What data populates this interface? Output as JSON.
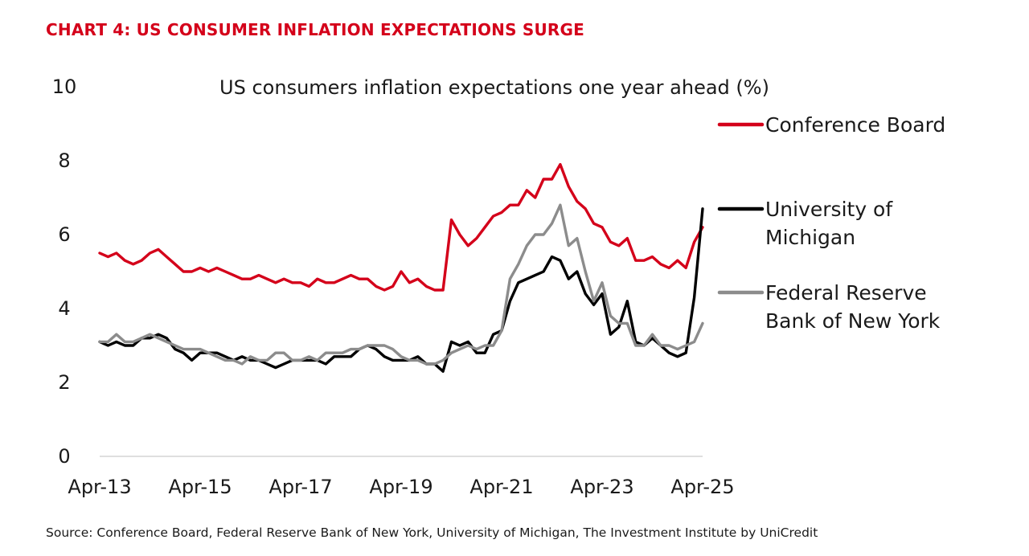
{
  "header": {
    "title": "CHART 4: US CONSUMER INFLATION EXPECTATIONS SURGE"
  },
  "footer": {
    "source": "Source: Conference Board, Federal Reserve Bank of New York, University of Michigan, The Investment Institute by UniCredit"
  },
  "chart_data": {
    "type": "line",
    "title": "US consumers inflation expectations one year ahead (%)",
    "xlabel": "",
    "ylabel": "",
    "ylim": [
      0,
      10
    ],
    "xlim": [
      "2013-04",
      "2025-04"
    ],
    "yticks": [
      "0",
      "2",
      "4",
      "6",
      "8",
      "10"
    ],
    "xticks": [
      "Apr-13",
      "Apr-15",
      "Apr-17",
      "Apr-19",
      "Apr-21",
      "Apr-23",
      "Apr-25"
    ],
    "grid": false,
    "legend_position": "right",
    "series": [
      {
        "name": "Conference Board",
        "color": "#d4001a",
        "points": [
          [
            "2013-04",
            5.5
          ],
          [
            "2013-06",
            5.4
          ],
          [
            "2013-08",
            5.5
          ],
          [
            "2013-10",
            5.3
          ],
          [
            "2013-12",
            5.2
          ],
          [
            "2014-02",
            5.3
          ],
          [
            "2014-04",
            5.5
          ],
          [
            "2014-06",
            5.6
          ],
          [
            "2014-08",
            5.4
          ],
          [
            "2014-10",
            5.2
          ],
          [
            "2014-12",
            5.0
          ],
          [
            "2015-02",
            5.0
          ],
          [
            "2015-04",
            5.1
          ],
          [
            "2015-06",
            5.0
          ],
          [
            "2015-08",
            5.1
          ],
          [
            "2015-10",
            5.0
          ],
          [
            "2015-12",
            4.9
          ],
          [
            "2016-02",
            4.8
          ],
          [
            "2016-04",
            4.8
          ],
          [
            "2016-06",
            4.9
          ],
          [
            "2016-08",
            4.8
          ],
          [
            "2016-10",
            4.7
          ],
          [
            "2016-12",
            4.8
          ],
          [
            "2017-02",
            4.7
          ],
          [
            "2017-04",
            4.7
          ],
          [
            "2017-06",
            4.6
          ],
          [
            "2017-08",
            4.8
          ],
          [
            "2017-10",
            4.7
          ],
          [
            "2017-12",
            4.7
          ],
          [
            "2018-02",
            4.8
          ],
          [
            "2018-04",
            4.9
          ],
          [
            "2018-06",
            4.8
          ],
          [
            "2018-08",
            4.8
          ],
          [
            "2018-10",
            4.6
          ],
          [
            "2018-12",
            4.5
          ],
          [
            "2019-02",
            4.6
          ],
          [
            "2019-04",
            5.0
          ],
          [
            "2019-06",
            4.7
          ],
          [
            "2019-08",
            4.8
          ],
          [
            "2019-10",
            4.6
          ],
          [
            "2019-12",
            4.5
          ],
          [
            "2020-02",
            4.5
          ],
          [
            "2020-04",
            6.4
          ],
          [
            "2020-06",
            6.0
          ],
          [
            "2020-08",
            5.7
          ],
          [
            "2020-10",
            5.9
          ],
          [
            "2020-12",
            6.2
          ],
          [
            "2021-02",
            6.5
          ],
          [
            "2021-04",
            6.6
          ],
          [
            "2021-06",
            6.8
          ],
          [
            "2021-08",
            6.8
          ],
          [
            "2021-10",
            7.2
          ],
          [
            "2021-12",
            7.0
          ],
          [
            "2022-02",
            7.5
          ],
          [
            "2022-04",
            7.5
          ],
          [
            "2022-06",
            7.9
          ],
          [
            "2022-08",
            7.3
          ],
          [
            "2022-10",
            6.9
          ],
          [
            "2022-12",
            6.7
          ],
          [
            "2023-02",
            6.3
          ],
          [
            "2023-04",
            6.2
          ],
          [
            "2023-06",
            5.8
          ],
          [
            "2023-08",
            5.7
          ],
          [
            "2023-10",
            5.9
          ],
          [
            "2023-12",
            5.3
          ],
          [
            "2024-02",
            5.3
          ],
          [
            "2024-04",
            5.4
          ],
          [
            "2024-06",
            5.2
          ],
          [
            "2024-08",
            5.1
          ],
          [
            "2024-10",
            5.3
          ],
          [
            "2024-12",
            5.1
          ],
          [
            "2025-02",
            5.8
          ],
          [
            "2025-04",
            6.2
          ]
        ]
      },
      {
        "name": "University of Michigan",
        "color": "#000000",
        "points": [
          [
            "2013-04",
            3.1
          ],
          [
            "2013-06",
            3.0
          ],
          [
            "2013-08",
            3.1
          ],
          [
            "2013-10",
            3.0
          ],
          [
            "2013-12",
            3.0
          ],
          [
            "2014-02",
            3.2
          ],
          [
            "2014-04",
            3.2
          ],
          [
            "2014-06",
            3.3
          ],
          [
            "2014-08",
            3.2
          ],
          [
            "2014-10",
            2.9
          ],
          [
            "2014-12",
            2.8
          ],
          [
            "2015-02",
            2.6
          ],
          [
            "2015-04",
            2.8
          ],
          [
            "2015-06",
            2.8
          ],
          [
            "2015-08",
            2.8
          ],
          [
            "2015-10",
            2.7
          ],
          [
            "2015-12",
            2.6
          ],
          [
            "2016-02",
            2.7
          ],
          [
            "2016-04",
            2.6
          ],
          [
            "2016-06",
            2.6
          ],
          [
            "2016-08",
            2.5
          ],
          [
            "2016-10",
            2.4
          ],
          [
            "2016-12",
            2.5
          ],
          [
            "2017-02",
            2.6
          ],
          [
            "2017-04",
            2.6
          ],
          [
            "2017-06",
            2.6
          ],
          [
            "2017-08",
            2.6
          ],
          [
            "2017-10",
            2.5
          ],
          [
            "2017-12",
            2.7
          ],
          [
            "2018-02",
            2.7
          ],
          [
            "2018-04",
            2.7
          ],
          [
            "2018-06",
            2.9
          ],
          [
            "2018-08",
            3.0
          ],
          [
            "2018-10",
            2.9
          ],
          [
            "2018-12",
            2.7
          ],
          [
            "2019-02",
            2.6
          ],
          [
            "2019-04",
            2.6
          ],
          [
            "2019-06",
            2.6
          ],
          [
            "2019-08",
            2.7
          ],
          [
            "2019-10",
            2.5
          ],
          [
            "2019-12",
            2.5
          ],
          [
            "2020-02",
            2.3
          ],
          [
            "2020-04",
            3.1
          ],
          [
            "2020-06",
            3.0
          ],
          [
            "2020-08",
            3.1
          ],
          [
            "2020-10",
            2.8
          ],
          [
            "2020-12",
            2.8
          ],
          [
            "2021-02",
            3.3
          ],
          [
            "2021-04",
            3.4
          ],
          [
            "2021-06",
            4.2
          ],
          [
            "2021-08",
            4.7
          ],
          [
            "2021-10",
            4.8
          ],
          [
            "2021-12",
            4.9
          ],
          [
            "2022-02",
            5.0
          ],
          [
            "2022-04",
            5.4
          ],
          [
            "2022-06",
            5.3
          ],
          [
            "2022-08",
            4.8
          ],
          [
            "2022-10",
            5.0
          ],
          [
            "2022-12",
            4.4
          ],
          [
            "2023-02",
            4.1
          ],
          [
            "2023-04",
            4.4
          ],
          [
            "2023-06",
            3.3
          ],
          [
            "2023-08",
            3.5
          ],
          [
            "2023-10",
            4.2
          ],
          [
            "2023-12",
            3.1
          ],
          [
            "2024-02",
            3.0
          ],
          [
            "2024-04",
            3.2
          ],
          [
            "2024-06",
            3.0
          ],
          [
            "2024-08",
            2.8
          ],
          [
            "2024-10",
            2.7
          ],
          [
            "2024-12",
            2.8
          ],
          [
            "2025-02",
            4.3
          ],
          [
            "2025-04",
            6.7
          ]
        ]
      },
      {
        "name": "Federal Reserve Bank of New York",
        "color": "#8c8c8c",
        "points": [
          [
            "2013-04",
            3.1
          ],
          [
            "2013-06",
            3.1
          ],
          [
            "2013-08",
            3.3
          ],
          [
            "2013-10",
            3.1
          ],
          [
            "2013-12",
            3.1
          ],
          [
            "2014-02",
            3.2
          ],
          [
            "2014-04",
            3.3
          ],
          [
            "2014-06",
            3.2
          ],
          [
            "2014-08",
            3.1
          ],
          [
            "2014-10",
            3.0
          ],
          [
            "2014-12",
            2.9
          ],
          [
            "2015-02",
            2.9
          ],
          [
            "2015-04",
            2.9
          ],
          [
            "2015-06",
            2.8
          ],
          [
            "2015-08",
            2.7
          ],
          [
            "2015-10",
            2.6
          ],
          [
            "2015-12",
            2.6
          ],
          [
            "2016-02",
            2.5
          ],
          [
            "2016-04",
            2.7
          ],
          [
            "2016-06",
            2.6
          ],
          [
            "2016-08",
            2.6
          ],
          [
            "2016-10",
            2.8
          ],
          [
            "2016-12",
            2.8
          ],
          [
            "2017-02",
            2.6
          ],
          [
            "2017-04",
            2.6
          ],
          [
            "2017-06",
            2.7
          ],
          [
            "2017-08",
            2.6
          ],
          [
            "2017-10",
            2.8
          ],
          [
            "2017-12",
            2.8
          ],
          [
            "2018-02",
            2.8
          ],
          [
            "2018-04",
            2.9
          ],
          [
            "2018-06",
            2.9
          ],
          [
            "2018-08",
            3.0
          ],
          [
            "2018-10",
            3.0
          ],
          [
            "2018-12",
            3.0
          ],
          [
            "2019-02",
            2.9
          ],
          [
            "2019-04",
            2.7
          ],
          [
            "2019-06",
            2.6
          ],
          [
            "2019-08",
            2.6
          ],
          [
            "2019-10",
            2.5
          ],
          [
            "2019-12",
            2.5
          ],
          [
            "2020-02",
            2.6
          ],
          [
            "2020-04",
            2.8
          ],
          [
            "2020-06",
            2.9
          ],
          [
            "2020-08",
            3.0
          ],
          [
            "2020-10",
            2.9
          ],
          [
            "2020-12",
            3.0
          ],
          [
            "2021-02",
            3.0
          ],
          [
            "2021-04",
            3.4
          ],
          [
            "2021-06",
            4.8
          ],
          [
            "2021-08",
            5.2
          ],
          [
            "2021-10",
            5.7
          ],
          [
            "2021-12",
            6.0
          ],
          [
            "2022-02",
            6.0
          ],
          [
            "2022-04",
            6.3
          ],
          [
            "2022-06",
            6.8
          ],
          [
            "2022-08",
            5.7
          ],
          [
            "2022-10",
            5.9
          ],
          [
            "2022-12",
            5.0
          ],
          [
            "2023-02",
            4.2
          ],
          [
            "2023-04",
            4.7
          ],
          [
            "2023-06",
            3.8
          ],
          [
            "2023-08",
            3.6
          ],
          [
            "2023-10",
            3.6
          ],
          [
            "2023-12",
            3.0
          ],
          [
            "2024-02",
            3.0
          ],
          [
            "2024-04",
            3.3
          ],
          [
            "2024-06",
            3.0
          ],
          [
            "2024-08",
            3.0
          ],
          [
            "2024-10",
            2.9
          ],
          [
            "2024-12",
            3.0
          ],
          [
            "2025-02",
            3.1
          ],
          [
            "2025-04",
            3.6
          ]
        ]
      }
    ],
    "legend": [
      {
        "lines": [
          "Conference Board"
        ]
      },
      {
        "lines": [
          "University of",
          "Michigan"
        ]
      },
      {
        "lines": [
          "Federal Reserve",
          "Bank of New York"
        ]
      }
    ]
  }
}
